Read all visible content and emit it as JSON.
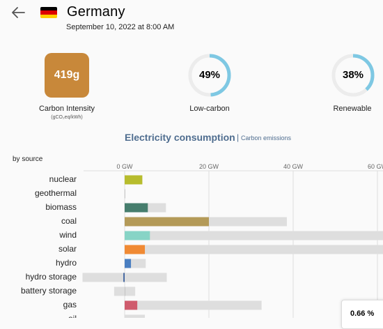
{
  "header": {
    "back_icon": "arrow-left-icon",
    "flag_colors": [
      "#000000",
      "#dd0000",
      "#ffce00"
    ],
    "country": "Germany",
    "datetime": "September 10, 2022 at 8:00 AM"
  },
  "metrics": {
    "carbon_intensity": {
      "value": "419g",
      "label": "Carbon Intensity",
      "unit": "(gCO₂eq/kWh)",
      "color": "#c8883a"
    },
    "low_carbon": {
      "value": "49%",
      "fraction": 0.49,
      "label": "Low-carbon",
      "color": "#7ec8e3"
    },
    "renewable": {
      "value": "38%",
      "fraction": 0.38,
      "label": "Renewable",
      "color": "#7ec8e3"
    }
  },
  "tabs": {
    "active": "Electricity consumption",
    "separator": "|",
    "other": "Carbon emissions"
  },
  "chart_section": {
    "label": "by source"
  },
  "chart_data": {
    "type": "bar",
    "orientation": "horizontal",
    "xunit": "GW",
    "xticks": [
      "0 GW",
      "20 GW",
      "40 GW",
      "60 GW"
    ],
    "tick_values": [
      0,
      20,
      40,
      60
    ],
    "xlim": [
      -10,
      62
    ],
    "categories": [
      "nuclear",
      "geothermal",
      "biomass",
      "coal",
      "wind",
      "solar",
      "hydro",
      "hydro storage",
      "battery storage",
      "gas"
    ],
    "values": [
      4.2,
      0,
      5.5,
      20,
      6,
      4.8,
      1.5,
      -0.3,
      0,
      3
    ],
    "capacity": [
      4.2,
      0,
      9.8,
      38.5,
      66,
      62,
      5,
      10,
      2.5,
      32.5
    ],
    "capacity_min": [
      4.2,
      0,
      0,
      0,
      0,
      0,
      0,
      -10,
      -2.5,
      0
    ],
    "colors": [
      "#b7bc2d",
      "#cccccc",
      "#467d6d",
      "#b49a58",
      "#87d4c6",
      "#f08a34",
      "#4a7fc1",
      "#3a5f9c",
      "#cccccc",
      "#cf5b6d"
    ],
    "partial_row_label": "oil"
  },
  "tooltip": {
    "value": "0.66 %"
  }
}
